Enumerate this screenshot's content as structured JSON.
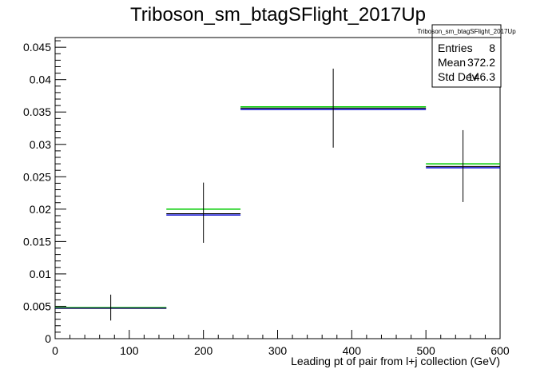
{
  "chart_data": {
    "type": "histogram",
    "title": "Triboson_sm_btagSFlight_2017Up",
    "xlabel": "Leading pt of pair from l+j collection (GeV)",
    "ylabel": "",
    "xlim": [
      0,
      600
    ],
    "ylim": [
      0,
      0.0465
    ],
    "x_ticks": [
      "0",
      "100",
      "200",
      "300",
      "400",
      "500",
      "600"
    ],
    "y_ticks": [
      "0",
      "0.005",
      "0.01",
      "0.015",
      "0.02",
      "0.025",
      "0.03",
      "0.035",
      "0.04",
      "0.045"
    ],
    "x_tick_values": [
      0,
      100,
      200,
      300,
      400,
      500,
      600
    ],
    "y_tick_values": [
      0,
      0.005,
      0.01,
      0.015,
      0.02,
      0.025,
      0.03,
      0.035,
      0.04,
      0.045
    ],
    "bins": [
      {
        "x_low": 0,
        "x_high": 150,
        "center": 75,
        "value": 0.0047,
        "error_low": 0.0028,
        "error_high": 0.0068,
        "green": 0.0048,
        "blue": 0.0047
      },
      {
        "x_low": 150,
        "x_high": 250,
        "center": 200,
        "value": 0.0193,
        "error_low": 0.0148,
        "error_high": 0.0241,
        "green": 0.02,
        "blue": 0.0191
      },
      {
        "x_low": 250,
        "x_high": 500,
        "center": 375,
        "value": 0.0356,
        "error_low": 0.0295,
        "error_high": 0.0417,
        "green": 0.0358,
        "blue": 0.0354
      },
      {
        "x_low": 500,
        "x_high": 600,
        "center": 550,
        "value": 0.0266,
        "error_low": 0.0211,
        "error_high": 0.0322,
        "green": 0.027,
        "blue": 0.0264
      }
    ],
    "series_colors": {
      "nominal": "#000000",
      "up": "#00cc00",
      "down": "#0000cc"
    },
    "grid": false,
    "legend_position": "top-right"
  },
  "stats_box": {
    "name": "Triboson_sm_btagSFlight_2017Up",
    "rows": [
      {
        "label": "Entries",
        "value": "8"
      },
      {
        "label": "Mean",
        "value": "372.2"
      },
      {
        "label": "Std Dev",
        "value": "146.3"
      }
    ]
  }
}
